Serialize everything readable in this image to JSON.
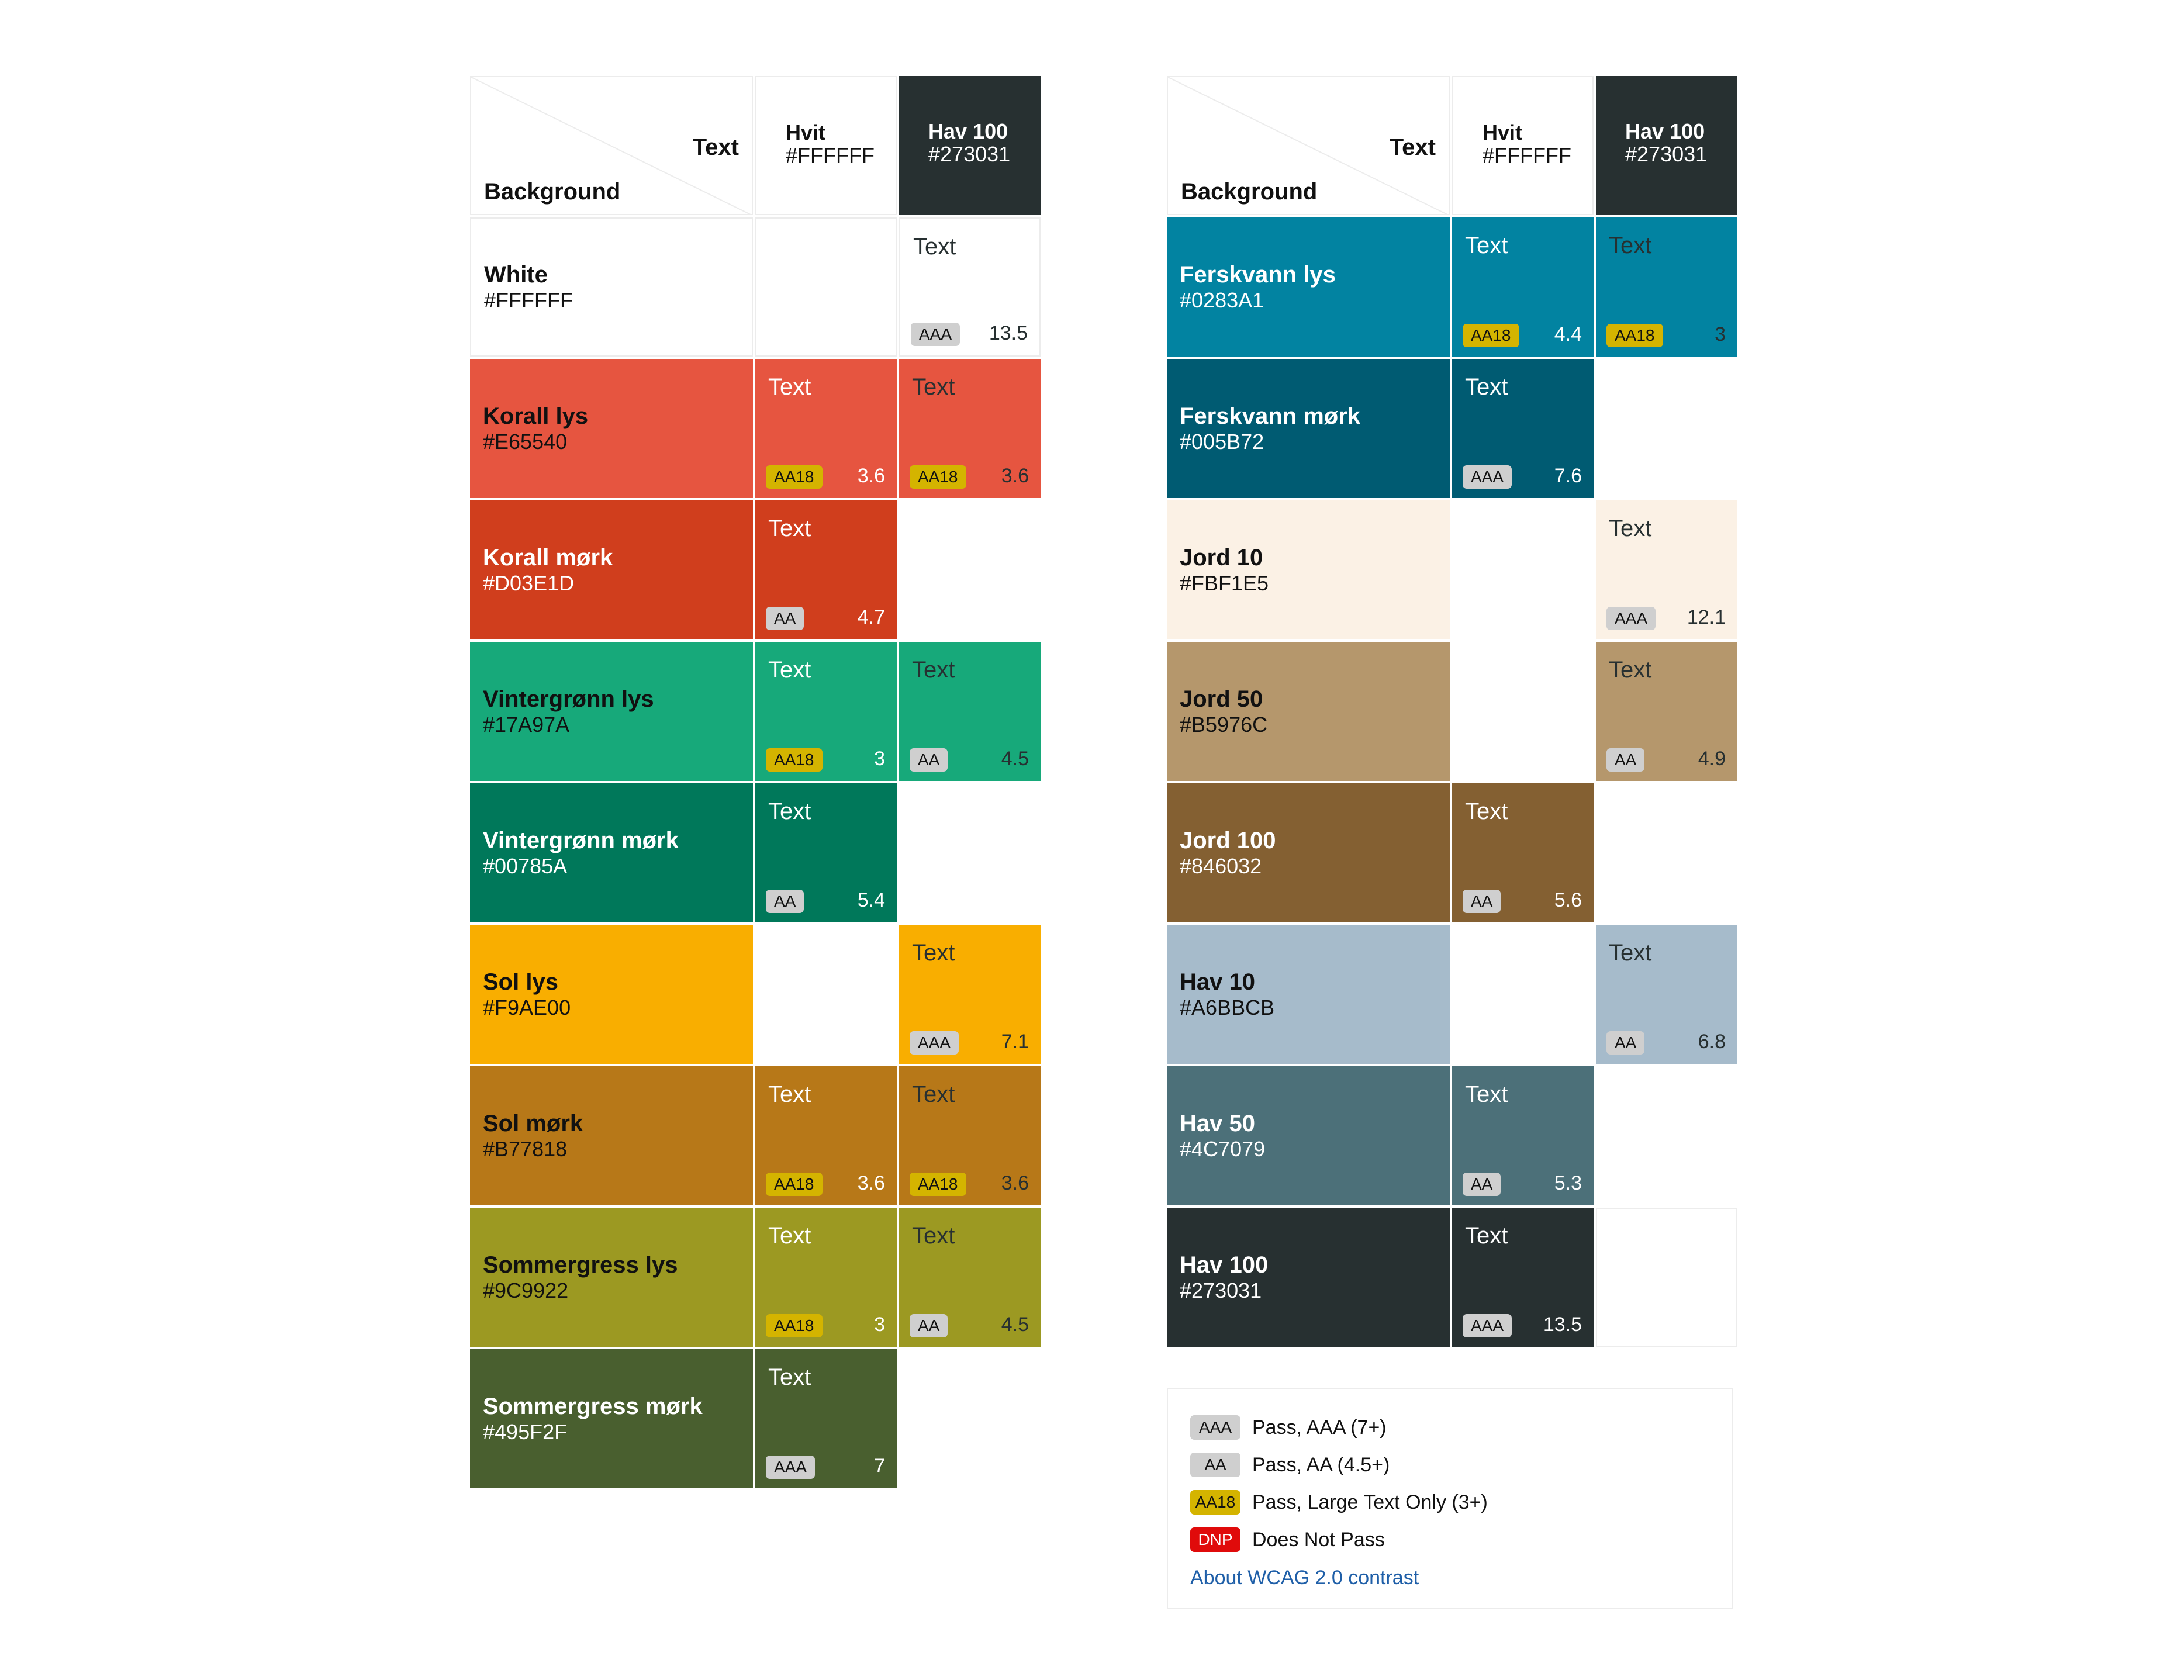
{
  "header": {
    "corner_text": "Text",
    "corner_background": "Background",
    "sample_word": "Text",
    "columns": [
      {
        "name": "Hvit",
        "hex": "#FFFFFF",
        "bg": "#FFFFFF",
        "fg": "#111111"
      },
      {
        "name": "Hav 100",
        "hex": "#273031",
        "bg": "#273031",
        "fg": "#FFFFFF"
      }
    ]
  },
  "badge_styles": {
    "AAA": {
      "bg": "#CFCFCF",
      "fg": "#111111"
    },
    "AA": {
      "bg": "#CFCFCF",
      "fg": "#111111"
    },
    "AA18": {
      "bg": "#D4B400",
      "fg": "#111111"
    },
    "DNP": {
      "bg": "#E00B0B",
      "fg": "#FFFFFF"
    }
  },
  "left_rows": [
    {
      "name": "White",
      "hex": "#FFFFFF",
      "label_color": "#111111",
      "cells": [
        null,
        {
          "badge": "AAA",
          "ratio": "13.5"
        }
      ]
    },
    {
      "name": "Korall lys",
      "hex": "#E65540",
      "label_color": "#111111",
      "cells": [
        {
          "badge": "AA18",
          "ratio": "3.6"
        },
        {
          "badge": "AA18",
          "ratio": "3.6"
        }
      ]
    },
    {
      "name": "Korall mørk",
      "hex": "#D03E1D",
      "label_color": "#FFFFFF",
      "cells": [
        {
          "badge": "AA",
          "ratio": "4.7"
        },
        null
      ]
    },
    {
      "name": "Vintergrønn lys",
      "hex": "#17A97A",
      "label_color": "#111111",
      "cells": [
        {
          "badge": "AA18",
          "ratio": "3"
        },
        {
          "badge": "AA",
          "ratio": "4.5"
        }
      ]
    },
    {
      "name": "Vintergrønn mørk",
      "hex": "#00785A",
      "label_color": "#FFFFFF",
      "cells": [
        {
          "badge": "AA",
          "ratio": "5.4"
        },
        null
      ]
    },
    {
      "name": "Sol lys",
      "hex": "#F9AE00",
      "label_color": "#111111",
      "cells": [
        null,
        {
          "badge": "AAA",
          "ratio": "7.1"
        }
      ]
    },
    {
      "name": "Sol mørk",
      "hex": "#B77818",
      "label_color": "#111111",
      "cells": [
        {
          "badge": "AA18",
          "ratio": "3.6"
        },
        {
          "badge": "AA18",
          "ratio": "3.6"
        }
      ]
    },
    {
      "name": "Sommergress lys",
      "hex": "#9C9922",
      "label_color": "#111111",
      "cells": [
        {
          "badge": "AA18",
          "ratio": "3"
        },
        {
          "badge": "AA",
          "ratio": "4.5"
        }
      ]
    },
    {
      "name": "Sommergress mørk",
      "hex": "#495F2F",
      "label_color": "#FFFFFF",
      "cells": [
        {
          "badge": "AAA",
          "ratio": "7"
        },
        null
      ]
    }
  ],
  "right_rows": [
    {
      "name": "Ferskvann lys",
      "hex": "#0283A1",
      "label_color": "#FFFFFF",
      "cells": [
        {
          "badge": "AA18",
          "ratio": "4.4"
        },
        {
          "badge": "AA18",
          "ratio": "3"
        }
      ]
    },
    {
      "name": "Ferskvann mørk",
      "hex": "#005B72",
      "label_color": "#FFFFFF",
      "cells": [
        {
          "badge": "AAA",
          "ratio": "7.6"
        },
        null
      ]
    },
    {
      "name": "Jord 10",
      "hex": "#FBF1E5",
      "label_color": "#111111",
      "cells": [
        null,
        {
          "badge": "AAA",
          "ratio": "12.1"
        }
      ]
    },
    {
      "name": "Jord 50",
      "hex": "#B5976C",
      "label_color": "#111111",
      "cells": [
        null,
        {
          "badge": "AA",
          "ratio": "4.9"
        }
      ]
    },
    {
      "name": "Jord 100",
      "hex": "#846032",
      "label_color": "#FFFFFF",
      "cells": [
        {
          "badge": "AA",
          "ratio": "5.6"
        },
        null
      ]
    },
    {
      "name": "Hav 10",
      "hex": "#A6BBCB",
      "label_color": "#111111",
      "cells": [
        null,
        {
          "badge": "AA",
          "ratio": "6.8"
        }
      ]
    },
    {
      "name": "Hav 50",
      "hex": "#4C7079",
      "label_color": "#FFFFFF",
      "cells": [
        {
          "badge": "AA",
          "ratio": "5.3"
        },
        null
      ]
    },
    {
      "name": "Hav 100",
      "hex": "#273031",
      "label_color": "#FFFFFF",
      "cells": [
        {
          "badge": "AAA",
          "ratio": "13.5"
        },
        null
      ]
    }
  ],
  "legend": {
    "items": [
      {
        "badge": "AAA",
        "text": "Pass, AAA (7+)"
      },
      {
        "badge": "AA",
        "text": "Pass, AA (4.5+)"
      },
      {
        "badge": "AA18",
        "text": "Pass, Large Text Only (3+)"
      },
      {
        "badge": "DNP",
        "text": "Does Not Pass"
      }
    ],
    "link": "About WCAG 2.0 contrast"
  }
}
